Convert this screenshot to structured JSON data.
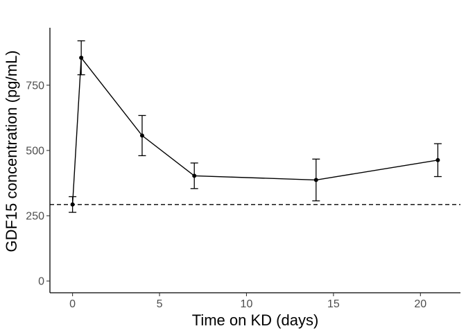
{
  "chart_data": {
    "type": "line",
    "title": "",
    "xlabel": "Time on KD (days)",
    "ylabel": "GDF15 concentration (pg/mL)",
    "xlim": [
      -1.3,
      22.3
    ],
    "ylim": [
      -45,
      970
    ],
    "xticks": [
      0,
      5,
      10,
      15,
      20
    ],
    "yticks": [
      0,
      250,
      500,
      750
    ],
    "grid": false,
    "legend": "none",
    "reference_line": {
      "y": 293,
      "style": "dashed"
    },
    "series": [
      {
        "x": [
          0,
          0.5,
          4,
          7,
          14,
          21
        ],
        "y": [
          293,
          855,
          557,
          403,
          387,
          463
        ],
        "err_low": [
          263,
          790,
          480,
          354,
          307,
          400
        ],
        "err_high": [
          323,
          920,
          634,
          452,
          467,
          526
        ]
      }
    ]
  }
}
